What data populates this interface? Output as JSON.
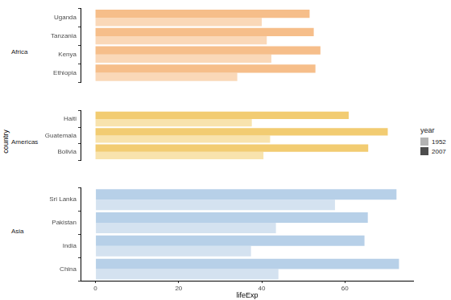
{
  "chart_data": [
    {
      "type": "bar",
      "orientation": "horizontal",
      "title": "Africa",
      "categories": [
        "Uganda",
        "Tanzania",
        "Kenya",
        "Ethiopia"
      ],
      "series": [
        {
          "name": "1952",
          "color": "#fad8b8",
          "values": [
            40.0,
            41.2,
            42.3,
            34.1
          ]
        },
        {
          "name": "2007",
          "color": "#f6be8a",
          "values": [
            51.5,
            52.5,
            54.1,
            52.9
          ]
        }
      ],
      "xlim": [
        -3.6,
        76.6
      ],
      "grid": false,
      "tick_labels": "y"
    },
    {
      "type": "bar",
      "orientation": "horizontal",
      "title": "Americas",
      "y_label": "country",
      "categories": [
        "Haiti",
        "Guatemala",
        "Bolivia"
      ],
      "series": [
        {
          "name": "1952",
          "color": "#f8e3ad",
          "values": [
            37.6,
            42.0,
            40.4
          ]
        },
        {
          "name": "2007",
          "color": "#f2cc72",
          "values": [
            60.9,
            70.3,
            65.6
          ]
        }
      ],
      "xlim": [
        -3.6,
        76.6
      ],
      "grid": false,
      "tick_labels": "y",
      "legend": "right",
      "legend_title": "year"
    },
    {
      "type": "bar",
      "orientation": "horizontal",
      "title": "Asia",
      "x_label": "lifeExp",
      "categories": [
        "Sri Lanka",
        "Pakistan",
        "India",
        "China"
      ],
      "series": [
        {
          "name": "1952",
          "color": "#d4e2f0",
          "values": [
            57.6,
            43.4,
            37.4,
            44.0
          ]
        },
        {
          "name": "2007",
          "color": "#b7d0e8",
          "values": [
            72.4,
            65.5,
            64.7,
            73.0
          ]
        }
      ],
      "xlim": [
        -3.6,
        76.6
      ],
      "xticks": [
        0,
        20,
        40,
        60
      ],
      "grid": false
    }
  ]
}
